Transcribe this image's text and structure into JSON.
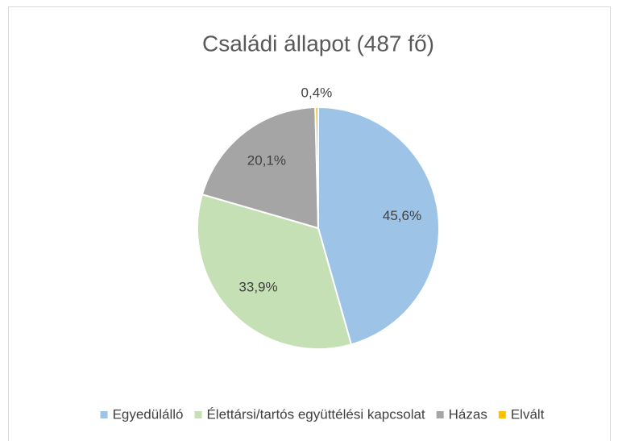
{
  "chart_data": {
    "type": "pie",
    "title": "Családi állapot (487 fő)",
    "categories": [
      "Egyedülálló",
      "Élettársi/tartós együttélési kapcsolat",
      "Házas",
      "Elvált"
    ],
    "values": [
      45.6,
      33.9,
      20.1,
      0.4
    ],
    "value_labels": [
      "45,6%",
      "33,9%",
      "20,1%",
      "0,4%"
    ],
    "colors": [
      "#9dc3e6",
      "#c5e0b4",
      "#a5a5a5",
      "#ffc000"
    ],
    "legend": "bottom"
  }
}
